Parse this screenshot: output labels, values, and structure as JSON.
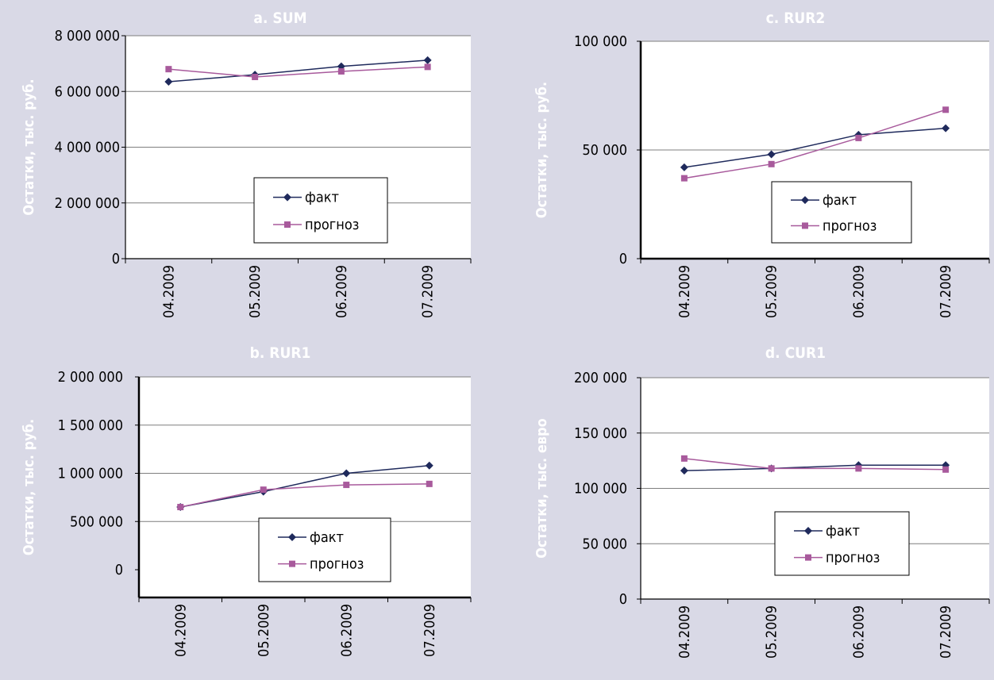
{
  "colors": {
    "background": "#d9d9e6",
    "panel_title": "#ffffff",
    "axis_label": "#ffffff",
    "fact": "#1f2a5c",
    "forecast": "#a85a9c",
    "grid": "#7f7f7f",
    "axis": "#000000"
  },
  "chart_data": [
    {
      "id": "a",
      "type": "line",
      "title": "a. SUM",
      "ylabel": "Остатки, тыс. руб.",
      "xlabel": "",
      "categories": [
        "04.2009",
        "05.2009",
        "06.2009",
        "07.2009"
      ],
      "ylim": [
        0,
        8000000
      ],
      "yticks": [
        0,
        2000000,
        4000000,
        6000000,
        8000000
      ],
      "ytick_labels": [
        "0",
        "2 000 000",
        "4 000 000",
        "6 000 000",
        "8 000 000"
      ],
      "grid": true,
      "legend_position": "lower-right",
      "series": [
        {
          "name": "факт",
          "marker": "diamond",
          "values": [
            6350000,
            6600000,
            6900000,
            7120000
          ]
        },
        {
          "name": "прогноз",
          "marker": "square",
          "values": [
            6800000,
            6520000,
            6720000,
            6880000
          ]
        }
      ]
    },
    {
      "id": "c",
      "type": "line",
      "title": "c. RUR2",
      "ylabel": "Остатки, тыс. руб.",
      "xlabel": "",
      "categories": [
        "04.2009",
        "05.2009",
        "06.2009",
        "07.2009"
      ],
      "ylim": [
        0,
        100000
      ],
      "yticks": [
        0,
        50000,
        100000
      ],
      "ytick_labels": [
        "0",
        "50 000",
        "100 000"
      ],
      "grid": true,
      "legend_position": "lower-right",
      "series": [
        {
          "name": "факт",
          "marker": "diamond",
          "values": [
            42000,
            48000,
            57000,
            60000
          ]
        },
        {
          "name": "прогноз",
          "marker": "square",
          "values": [
            37000,
            43500,
            55500,
            68500
          ]
        }
      ]
    },
    {
      "id": "b",
      "type": "line",
      "title": "b. RUR1",
      "ylabel": "Остатки, тыс. руб.",
      "xlabel": "",
      "categories": [
        "04.2009",
        "05.2009",
        "06.2009",
        "07.2009"
      ],
      "ylim": [
        0,
        2000000
      ],
      "yticks": [
        0,
        500000,
        1000000,
        1500000,
        2000000
      ],
      "ytick_labels": [
        "0",
        "500 000",
        "1 000 000",
        "1 500 000",
        "2 000 000"
      ],
      "grid": true,
      "legend_position": "lower-right",
      "series": [
        {
          "name": "факт",
          "marker": "diamond",
          "values": [
            650000,
            810000,
            1000000,
            1080000
          ]
        },
        {
          "name": "прогноз",
          "marker": "square",
          "values": [
            650000,
            830000,
            880000,
            890000
          ]
        }
      ]
    },
    {
      "id": "d",
      "type": "line",
      "title": "d. CUR1",
      "ylabel": "Остатки, тыс. евро",
      "xlabel": "",
      "categories": [
        "04.2009",
        "05.2009",
        "06.2009",
        "07.2009"
      ],
      "ylim": [
        0,
        200000
      ],
      "yticks": [
        0,
        50000,
        100000,
        150000,
        200000
      ],
      "ytick_labels": [
        "0",
        "50 000",
        "100 000",
        "150 000",
        "200 000"
      ],
      "grid": true,
      "legend_position": "lower-right",
      "series": [
        {
          "name": "факт",
          "marker": "diamond",
          "values": [
            116000,
            118000,
            121000,
            121000
          ]
        },
        {
          "name": "прогноз",
          "marker": "square",
          "values": [
            127000,
            118000,
            118000,
            117000
          ]
        }
      ]
    }
  ]
}
